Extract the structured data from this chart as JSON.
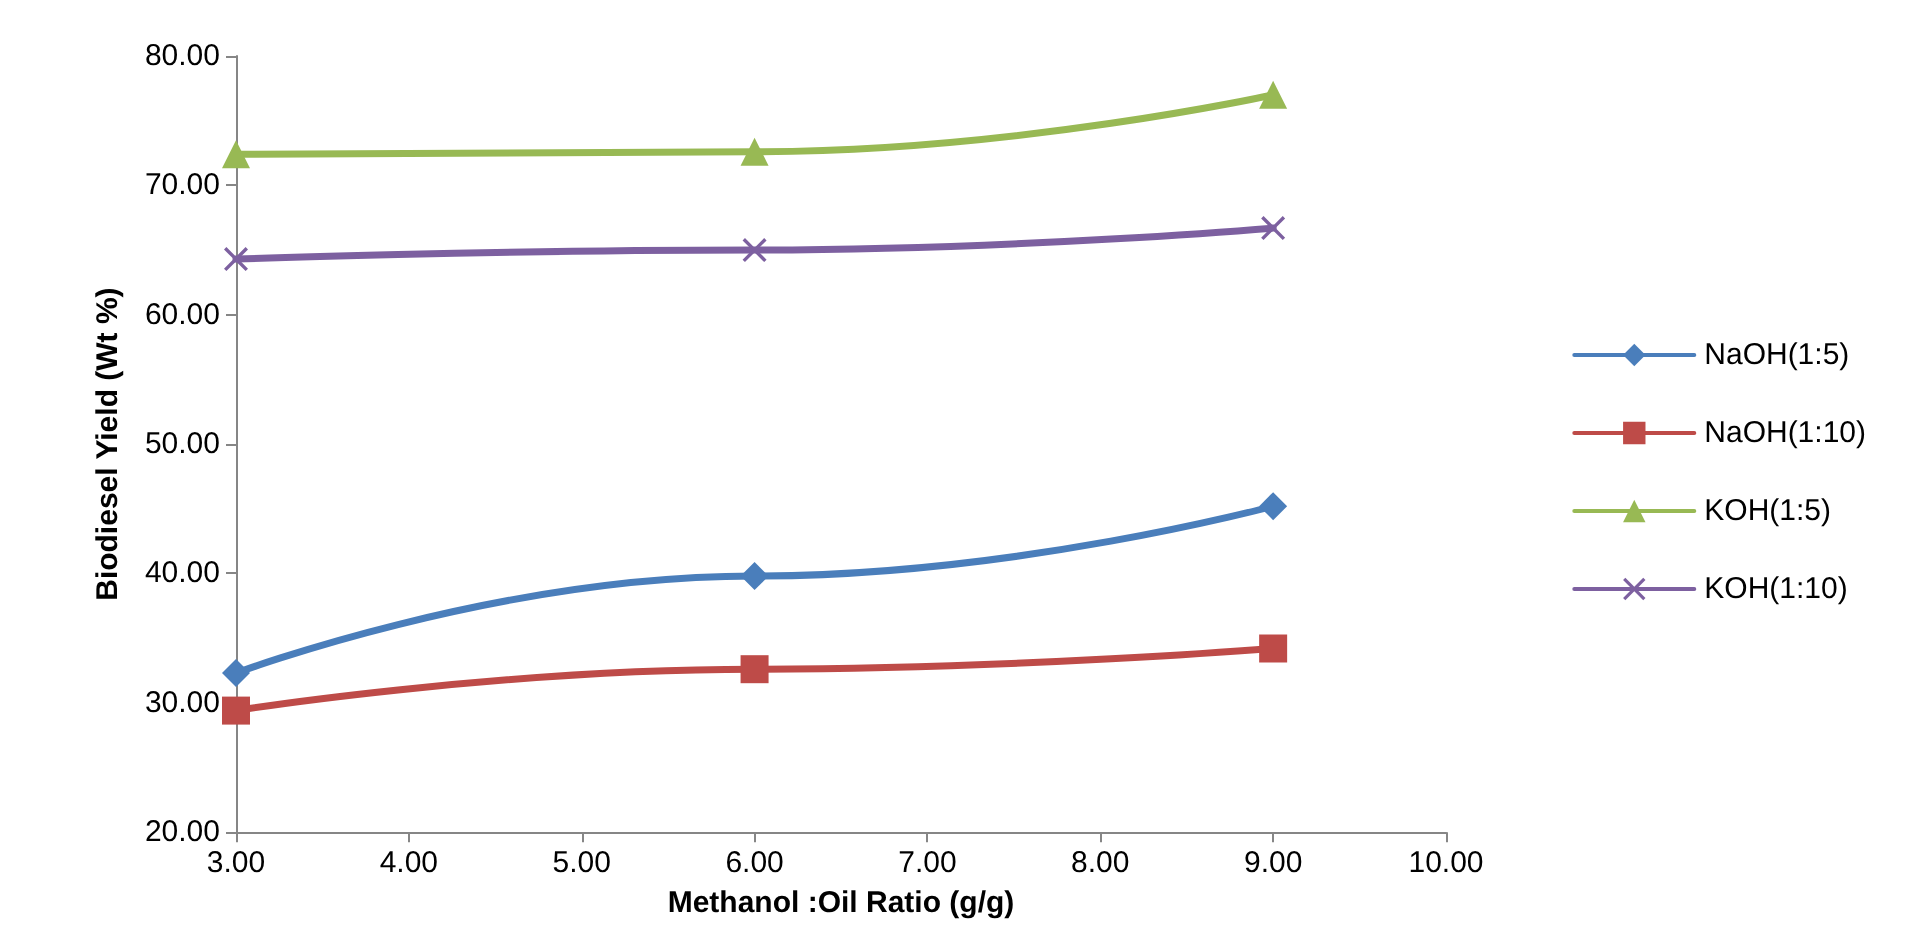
{
  "chart_data": {
    "type": "line",
    "xlabel": "Methanol :Oil Ratio (g/g)",
    "ylabel": "Biodiesel Yield (Wt %)",
    "x": [
      3,
      6,
      9
    ],
    "series": [
      {
        "name": "NaOH(1:5)",
        "color": "#4a7ebb",
        "marker": "diamond",
        "values": [
          32.3,
          39.8,
          45.2
        ]
      },
      {
        "name": "NaOH(1:10)",
        "color": "#be4b48",
        "marker": "square",
        "values": [
          29.4,
          32.6,
          34.2
        ]
      },
      {
        "name": "KOH(1:5)",
        "color": "#98b954",
        "marker": "triangle",
        "values": [
          72.4,
          72.6,
          77.0
        ]
      },
      {
        "name": "KOH(1:10)",
        "color": "#7d60a0",
        "marker": "cross",
        "values": [
          64.3,
          65.0,
          66.7
        ]
      }
    ],
    "xlim": [
      3,
      10
    ],
    "xticks": [
      {
        "value": 3,
        "label": "3.00"
      },
      {
        "value": 4,
        "label": "4.00"
      },
      {
        "value": 5,
        "label": "5.00"
      },
      {
        "value": 6,
        "label": "6.00"
      },
      {
        "value": 7,
        "label": "7.00"
      },
      {
        "value": 8,
        "label": "8.00"
      },
      {
        "value": 9,
        "label": "9.00"
      },
      {
        "value": 10,
        "label": "10.00"
      }
    ],
    "ylim": [
      20,
      80
    ],
    "yticks": [
      {
        "value": 20,
        "label": "20.00"
      },
      {
        "value": 30,
        "label": "30.00"
      },
      {
        "value": 40,
        "label": "40.00"
      },
      {
        "value": 50,
        "label": "50.00"
      },
      {
        "value": 60,
        "label": "60.00"
      },
      {
        "value": 70,
        "label": "70.00"
      },
      {
        "value": 80,
        "label": "80.00"
      }
    ],
    "grid": false,
    "legend": "right",
    "line_style": "solid"
  }
}
